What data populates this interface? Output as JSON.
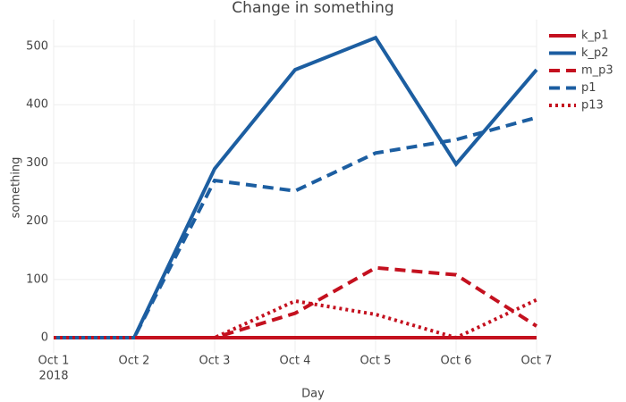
{
  "chart_data": {
    "type": "line",
    "title": "Change in something",
    "x_label": "Day",
    "y_label": "something",
    "x": [
      "2018-10-01",
      "2018-10-02",
      "2018-10-03",
      "2018-10-04",
      "2018-10-05",
      "2018-10-06",
      "2018-10-07"
    ],
    "xlim": [
      "2018-10-01",
      "2018-10-07"
    ],
    "xticks": [
      {
        "value": "2018-10-01",
        "label": "Oct 1"
      },
      {
        "value": "2018-10-02",
        "label": "Oct 2"
      },
      {
        "value": "2018-10-03",
        "label": "Oct 3"
      },
      {
        "value": "2018-10-04",
        "label": "Oct 4"
      },
      {
        "value": "2018-10-05",
        "label": "Oct 5"
      },
      {
        "value": "2018-10-06",
        "label": "Oct 6"
      },
      {
        "value": "2018-10-07",
        "label": "Oct 7"
      }
    ],
    "x_year": "2018",
    "ylim": [
      -26,
      546
    ],
    "yticks": [
      0,
      100,
      200,
      300,
      400,
      500
    ],
    "grid": true,
    "legend": "top-right",
    "series": [
      {
        "name": "k_p1",
        "color": "#c4111f",
        "dash": "solid",
        "values": [
          0,
          0,
          0,
          0,
          0,
          0,
          0
        ]
      },
      {
        "name": "k_p2",
        "color": "#1c5ea1",
        "dash": "solid",
        "values": [
          0,
          0,
          290,
          460,
          515,
          298,
          460
        ]
      },
      {
        "name": "m_p3",
        "color": "#c4111f",
        "dash": "dash",
        "values": [
          0,
          0,
          0,
          42,
          120,
          108,
          20
        ]
      },
      {
        "name": "p1",
        "color": "#1c5ea1",
        "dash": "dash",
        "values": [
          0,
          0,
          270,
          252,
          317,
          340,
          378
        ]
      },
      {
        "name": "p13",
        "color": "#c4111f",
        "dash": "dot",
        "values": [
          0,
          0,
          0,
          63,
          40,
          0,
          65
        ]
      }
    ]
  }
}
